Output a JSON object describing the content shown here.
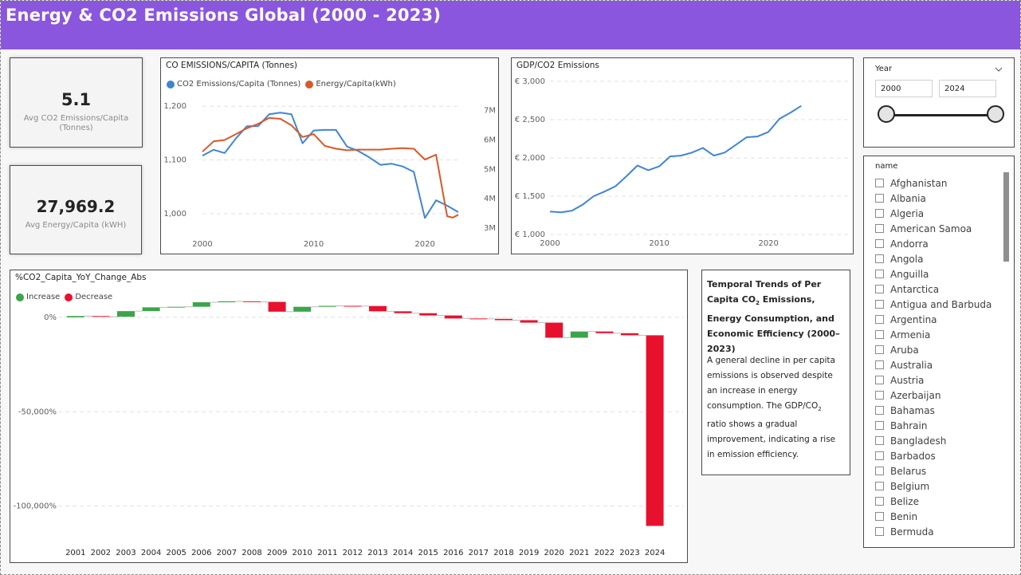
{
  "header": {
    "title": "Energy & CO2 Emissions Global (2000 - 2023)"
  },
  "kpis": [
    {
      "value": "5.1",
      "label_line1": "Avg CO2 Emissions/Capita",
      "label_line2": "(Tonnes)"
    },
    {
      "value": "27,969.2",
      "label_line1": "Avg Energy/Capita (kWH)",
      "label_line2": ""
    }
  ],
  "co2_chart": {
    "title": "CO EMISSIONS/CAPITA (Tonnes)",
    "legend": [
      "CO2 Emissions/Capita (Tonnes)",
      "Energy/Capita(kWh)"
    ]
  },
  "gdp_chart": {
    "title": "GDP/CO2 Emissions"
  },
  "yoy_chart": {
    "title": "%CO2_Capita_YoY_Change_Abs",
    "legend": [
      "Increase",
      "Decrease"
    ]
  },
  "textbox": {
    "title_a": "Temporal Trends of Per Capita CO",
    "title_sub": "2",
    "title_b": " Emissions, Energy Consumption, and Economic Efficiency (2000–2023)",
    "body_a": "A general decline in per capita emissions is observed despite an increase in energy consumption. The GDP/CO",
    "body_sub": "2",
    "body_b": " ratio shows a gradual improvement, indicating a rise in emission efficiency."
  },
  "year_slicer": {
    "title": "Year",
    "from": "2000",
    "to": "2024",
    "range": [
      2000,
      2024
    ]
  },
  "name_slicer": {
    "title": "name",
    "items": [
      "Afghanistan",
      "Albania",
      "Algeria",
      "American Samoa",
      "Andorra",
      "Angola",
      "Anguilla",
      "Antarctica",
      "Antigua and Barbuda",
      "Argentina",
      "Armenia",
      "Aruba",
      "Australia",
      "Austria",
      "Azerbaijan",
      "Bahamas",
      "Bahrain",
      "Bangladesh",
      "Barbados",
      "Belarus",
      "Belgium",
      "Belize",
      "Benin",
      "Bermuda"
    ]
  },
  "colors": {
    "header": "#8b56de",
    "co2_line": "#3f85d4",
    "energy_line": "#d9582a",
    "gdp_line": "#3f85d4",
    "increase": "#3ca54a",
    "decrease": "#e8112d",
    "connector": "#bdbdbd"
  },
  "chart_data": [
    {
      "type": "line",
      "title": "CO EMISSIONS/CAPITA (Tonnes)",
      "x_ticks": [
        2000,
        2010,
        2020
      ],
      "y_left_ticks": [
        "1,000",
        "1,100",
        "1,200"
      ],
      "y_left_values": [
        1000,
        1100,
        1200
      ],
      "y_left_range": [
        960,
        1230
      ],
      "y_right_ticks": [
        "3M",
        "4M",
        "5M",
        "6M",
        "7M"
      ],
      "y_right_values": [
        3,
        4,
        5,
        6,
        7
      ],
      "y_right_range": [
        2.75,
        7.7
      ],
      "grid": true,
      "legend_position": "top-left",
      "series": [
        {
          "name": "CO2 Emissions/Capita (Tonnes)",
          "axis": "left",
          "x": [
            2000,
            2001,
            2002,
            2003,
            2004,
            2005,
            2006,
            2007,
            2008,
            2009,
            2010,
            2011,
            2012,
            2013,
            2014,
            2015,
            2016,
            2017,
            2018,
            2019,
            2020,
            2021,
            2022,
            2023
          ],
          "values": [
            1108,
            1119,
            1113,
            1140,
            1163,
            1163,
            1185,
            1188,
            1185,
            1131,
            1155,
            1156,
            1156,
            1125,
            1117,
            1105,
            1091,
            1093,
            1088,
            1078,
            992,
            1025,
            1015,
            1003
          ]
        },
        {
          "name": "Energy/Capita(kWh)",
          "axis": "right",
          "x": [
            2000,
            2001,
            2002,
            2003,
            2004,
            2005,
            2006,
            2007,
            2008,
            2009,
            2010,
            2011,
            2012,
            2013,
            2014,
            2015,
            2016,
            2017,
            2018,
            2019,
            2020,
            2021,
            2022,
            2022.5,
            2023
          ],
          "values": [
            5.6,
            5.95,
            6.0,
            6.2,
            6.4,
            6.55,
            6.75,
            6.72,
            6.5,
            6.1,
            6.2,
            5.8,
            5.7,
            5.65,
            5.67,
            5.67,
            5.67,
            5.7,
            5.72,
            5.7,
            5.33,
            5.5,
            3.4,
            3.35,
            3.45
          ]
        }
      ]
    },
    {
      "type": "line",
      "title": "GDP/CO2 Emissions",
      "x_ticks": [
        2000,
        2010,
        2020
      ],
      "y_ticks": [
        "€ 1,000",
        "€ 1,500",
        "€ 2,000",
        "€ 2,500",
        "€ 3,000"
      ],
      "y_values": [
        1000,
        1500,
        2000,
        2500,
        3000
      ],
      "y_range": [
        1000,
        3000
      ],
      "grid": true,
      "series": [
        {
          "name": "",
          "x": [
            2000,
            2001,
            2002,
            2003,
            2004,
            2005,
            2006,
            2007,
            2008,
            2009,
            2010,
            2011,
            2012,
            2013,
            2014,
            2015,
            2016,
            2017,
            2018,
            2019,
            2020,
            2021,
            2022,
            2023
          ],
          "values": [
            1300,
            1290,
            1310,
            1390,
            1500,
            1560,
            1630,
            1760,
            1900,
            1840,
            1890,
            2020,
            2030,
            2070,
            2130,
            2030,
            2070,
            2170,
            2270,
            2280,
            2340,
            2510,
            2590,
            2680
          ]
        }
      ]
    },
    {
      "type": "bar",
      "subtype": "waterfall",
      "title": "%CO2_Capita_YoY_Change_Abs",
      "categories": [
        "2001",
        "2002",
        "2003",
        "2004",
        "2005",
        "2006",
        "2007",
        "2008",
        "2009",
        "2010",
        "2011",
        "2012",
        "2013",
        "2014",
        "2015",
        "2016",
        "2017",
        "2018",
        "2019",
        "2020",
        "2021",
        "2022",
        "2023",
        "2024"
      ],
      "values": [
        700,
        -400,
        3000,
        2000,
        300,
        2400,
        500,
        -300,
        -5200,
        2600,
        500,
        -100,
        -2800,
        -1000,
        -1200,
        -1600,
        -200,
        -700,
        -1300,
        -8000,
        3300,
        -900,
        -1100,
        -101000
      ],
      "y_ticks": [
        "0%",
        "-50,000%",
        "-100,000%"
      ],
      "y_tick_values": [
        0,
        -50000,
        -100000
      ],
      "y_range": [
        -123000,
        8000
      ],
      "legend": [
        "Increase",
        "Decrease"
      ],
      "legend_position": "top-left",
      "grid": true
    }
  ]
}
